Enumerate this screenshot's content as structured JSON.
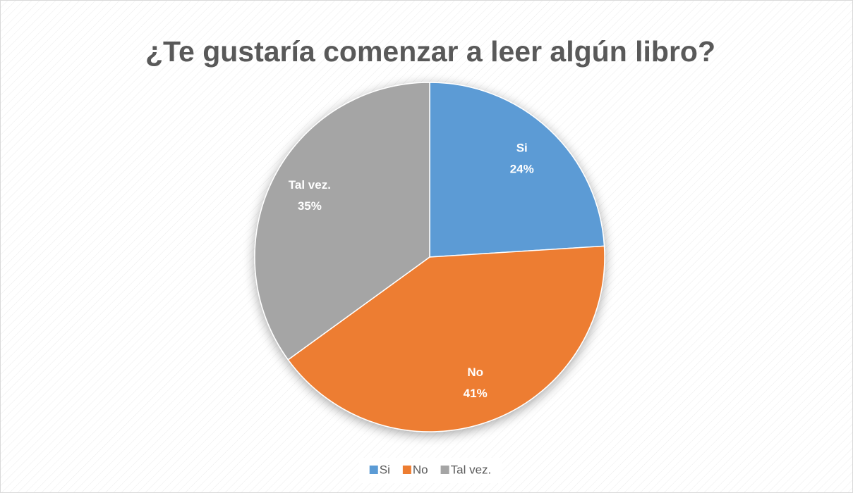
{
  "chart_data": {
    "type": "pie",
    "title": "¿Te gustaría comenzar a leer algún libro?",
    "categories": [
      "Si",
      "No",
      "Tal vez."
    ],
    "values": [
      24,
      41,
      35
    ],
    "value_labels": [
      "24%",
      "41%",
      "35%"
    ],
    "colors": [
      "#5b9bd5",
      "#ed7d31",
      "#a5a5a5"
    ],
    "legend": "bottom"
  }
}
